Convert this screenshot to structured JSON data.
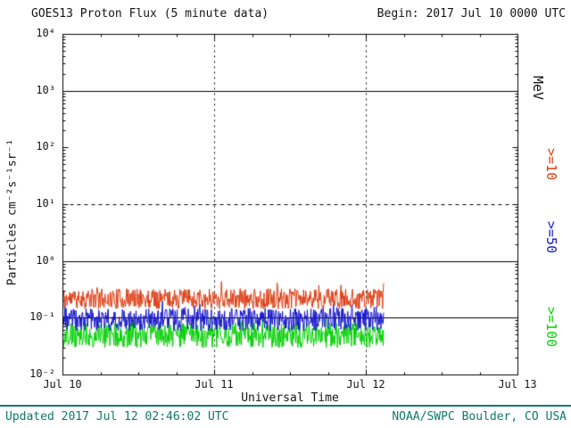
{
  "header": {
    "begin_label": "Begin: 2017 Jul 10 0000 UTC"
  },
  "right_labels": {
    "unit": "MeV",
    "ge10": ">=10",
    "ge50": ">=50",
    "ge100": ">=100"
  },
  "footer": {
    "updated": "Updated 2017 Jul 12 02:46:02 UTC",
    "credit": "NOAA/SWPC Boulder, CO USA",
    "divider_color": "#0d7a68"
  },
  "colors": {
    "text": "#161616",
    "footer_text": "#0d7a68",
    "axis": "#000000",
    "background": "#ffffff"
  },
  "chart_data": {
    "type": "line",
    "title": "GOES13 Proton Flux (5 minute data)",
    "xlabel": "Universal Time",
    "ylabel": "Particles cm⁻²s⁻¹sr⁻¹",
    "x_range_days": [
      0,
      3
    ],
    "x_tick_labels": [
      "Jul 10",
      "Jul 11",
      "Jul 12",
      "Jul 13"
    ],
    "y_log_range": [
      -2,
      4
    ],
    "y_tick_labels": [
      "10⁴",
      "10³",
      "10²",
      "10¹",
      "10⁰",
      "10⁻¹",
      "10⁻²"
    ],
    "y_axis_scale": "log",
    "grid": "partial-hlines",
    "legend_position": "right-rotated",
    "hlines": [
      {
        "value": 1000,
        "style": "solid"
      },
      {
        "value": 10,
        "style": "dashed"
      },
      {
        "value": 1,
        "style": "solid"
      },
      {
        "value": 0.1,
        "style": "solid"
      }
    ],
    "vlines_days": [
      1,
      2
    ],
    "data_start_day": 0,
    "data_end_day": 2.115,
    "sample_interval_minutes": 5,
    "series": [
      {
        "name": ">=10 MeV",
        "color": "#dc3a10",
        "mean_flux": 0.22,
        "min_flux": 0.13,
        "max_flux": 0.45,
        "noise_decades": 0.18,
        "seed": 11
      },
      {
        "name": ">=50 MeV",
        "color": "#1414cc",
        "mean_flux": 0.095,
        "min_flux": 0.055,
        "max_flux": 0.2,
        "noise_decades": 0.2,
        "seed": 23
      },
      {
        "name": ">=100 MeV",
        "color": "#00d000",
        "mean_flux": 0.05,
        "min_flux": 0.028,
        "max_flux": 0.1,
        "noise_decades": 0.22,
        "seed": 37
      }
    ]
  }
}
